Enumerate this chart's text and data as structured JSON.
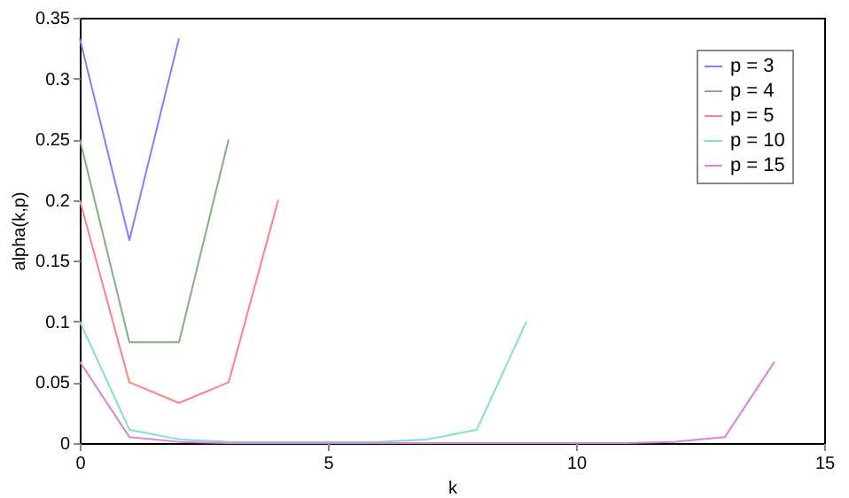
{
  "chart_data": {
    "type": "line",
    "xlabel": "k",
    "ylabel": "alpha(k,p)",
    "xlim": [
      0,
      15
    ],
    "xticks": [
      0,
      5,
      10,
      15
    ],
    "ylim": [
      0,
      0.35
    ],
    "yticks": [
      0,
      0.05,
      0.1,
      0.15,
      0.2,
      0.25,
      0.3,
      0.35
    ],
    "grid": false,
    "legend": "top right",
    "marker": "none",
    "line_style": "solid",
    "series": [
      {
        "name": "p = 3",
        "color": "#8080ff",
        "x": [
          0,
          1,
          2
        ],
        "values": [
          0.333,
          0.167,
          0.333
        ]
      },
      {
        "name": "p = 4",
        "color": "#80b080",
        "x": [
          0,
          1,
          2,
          3
        ],
        "values": [
          0.25,
          0.083,
          0.083,
          0.25
        ]
      },
      {
        "name": "p = 5",
        "color": "#ff8080",
        "x": [
          0,
          1,
          2,
          3,
          4
        ],
        "values": [
          0.2,
          0.05,
          0.033,
          0.05,
          0.2
        ]
      },
      {
        "name": "p = 10",
        "color": "#80dfd0",
        "x": [
          0,
          1,
          2,
          3,
          4,
          5,
          6,
          7,
          8,
          9
        ],
        "values": [
          0.1,
          0.011,
          0.003,
          0.001,
          0.001,
          0.001,
          0.001,
          0.003,
          0.011,
          0.1
        ]
      },
      {
        "name": "p = 15",
        "color": "#df80df",
        "x": [
          0,
          1,
          2,
          3,
          4,
          5,
          6,
          7,
          8,
          9,
          10,
          11,
          12,
          13,
          14
        ],
        "values": [
          0.067,
          0.005,
          0.001,
          0,
          0,
          0,
          0,
          0,
          0,
          0,
          0,
          0,
          0.001,
          0.005,
          0.067
        ]
      }
    ]
  }
}
